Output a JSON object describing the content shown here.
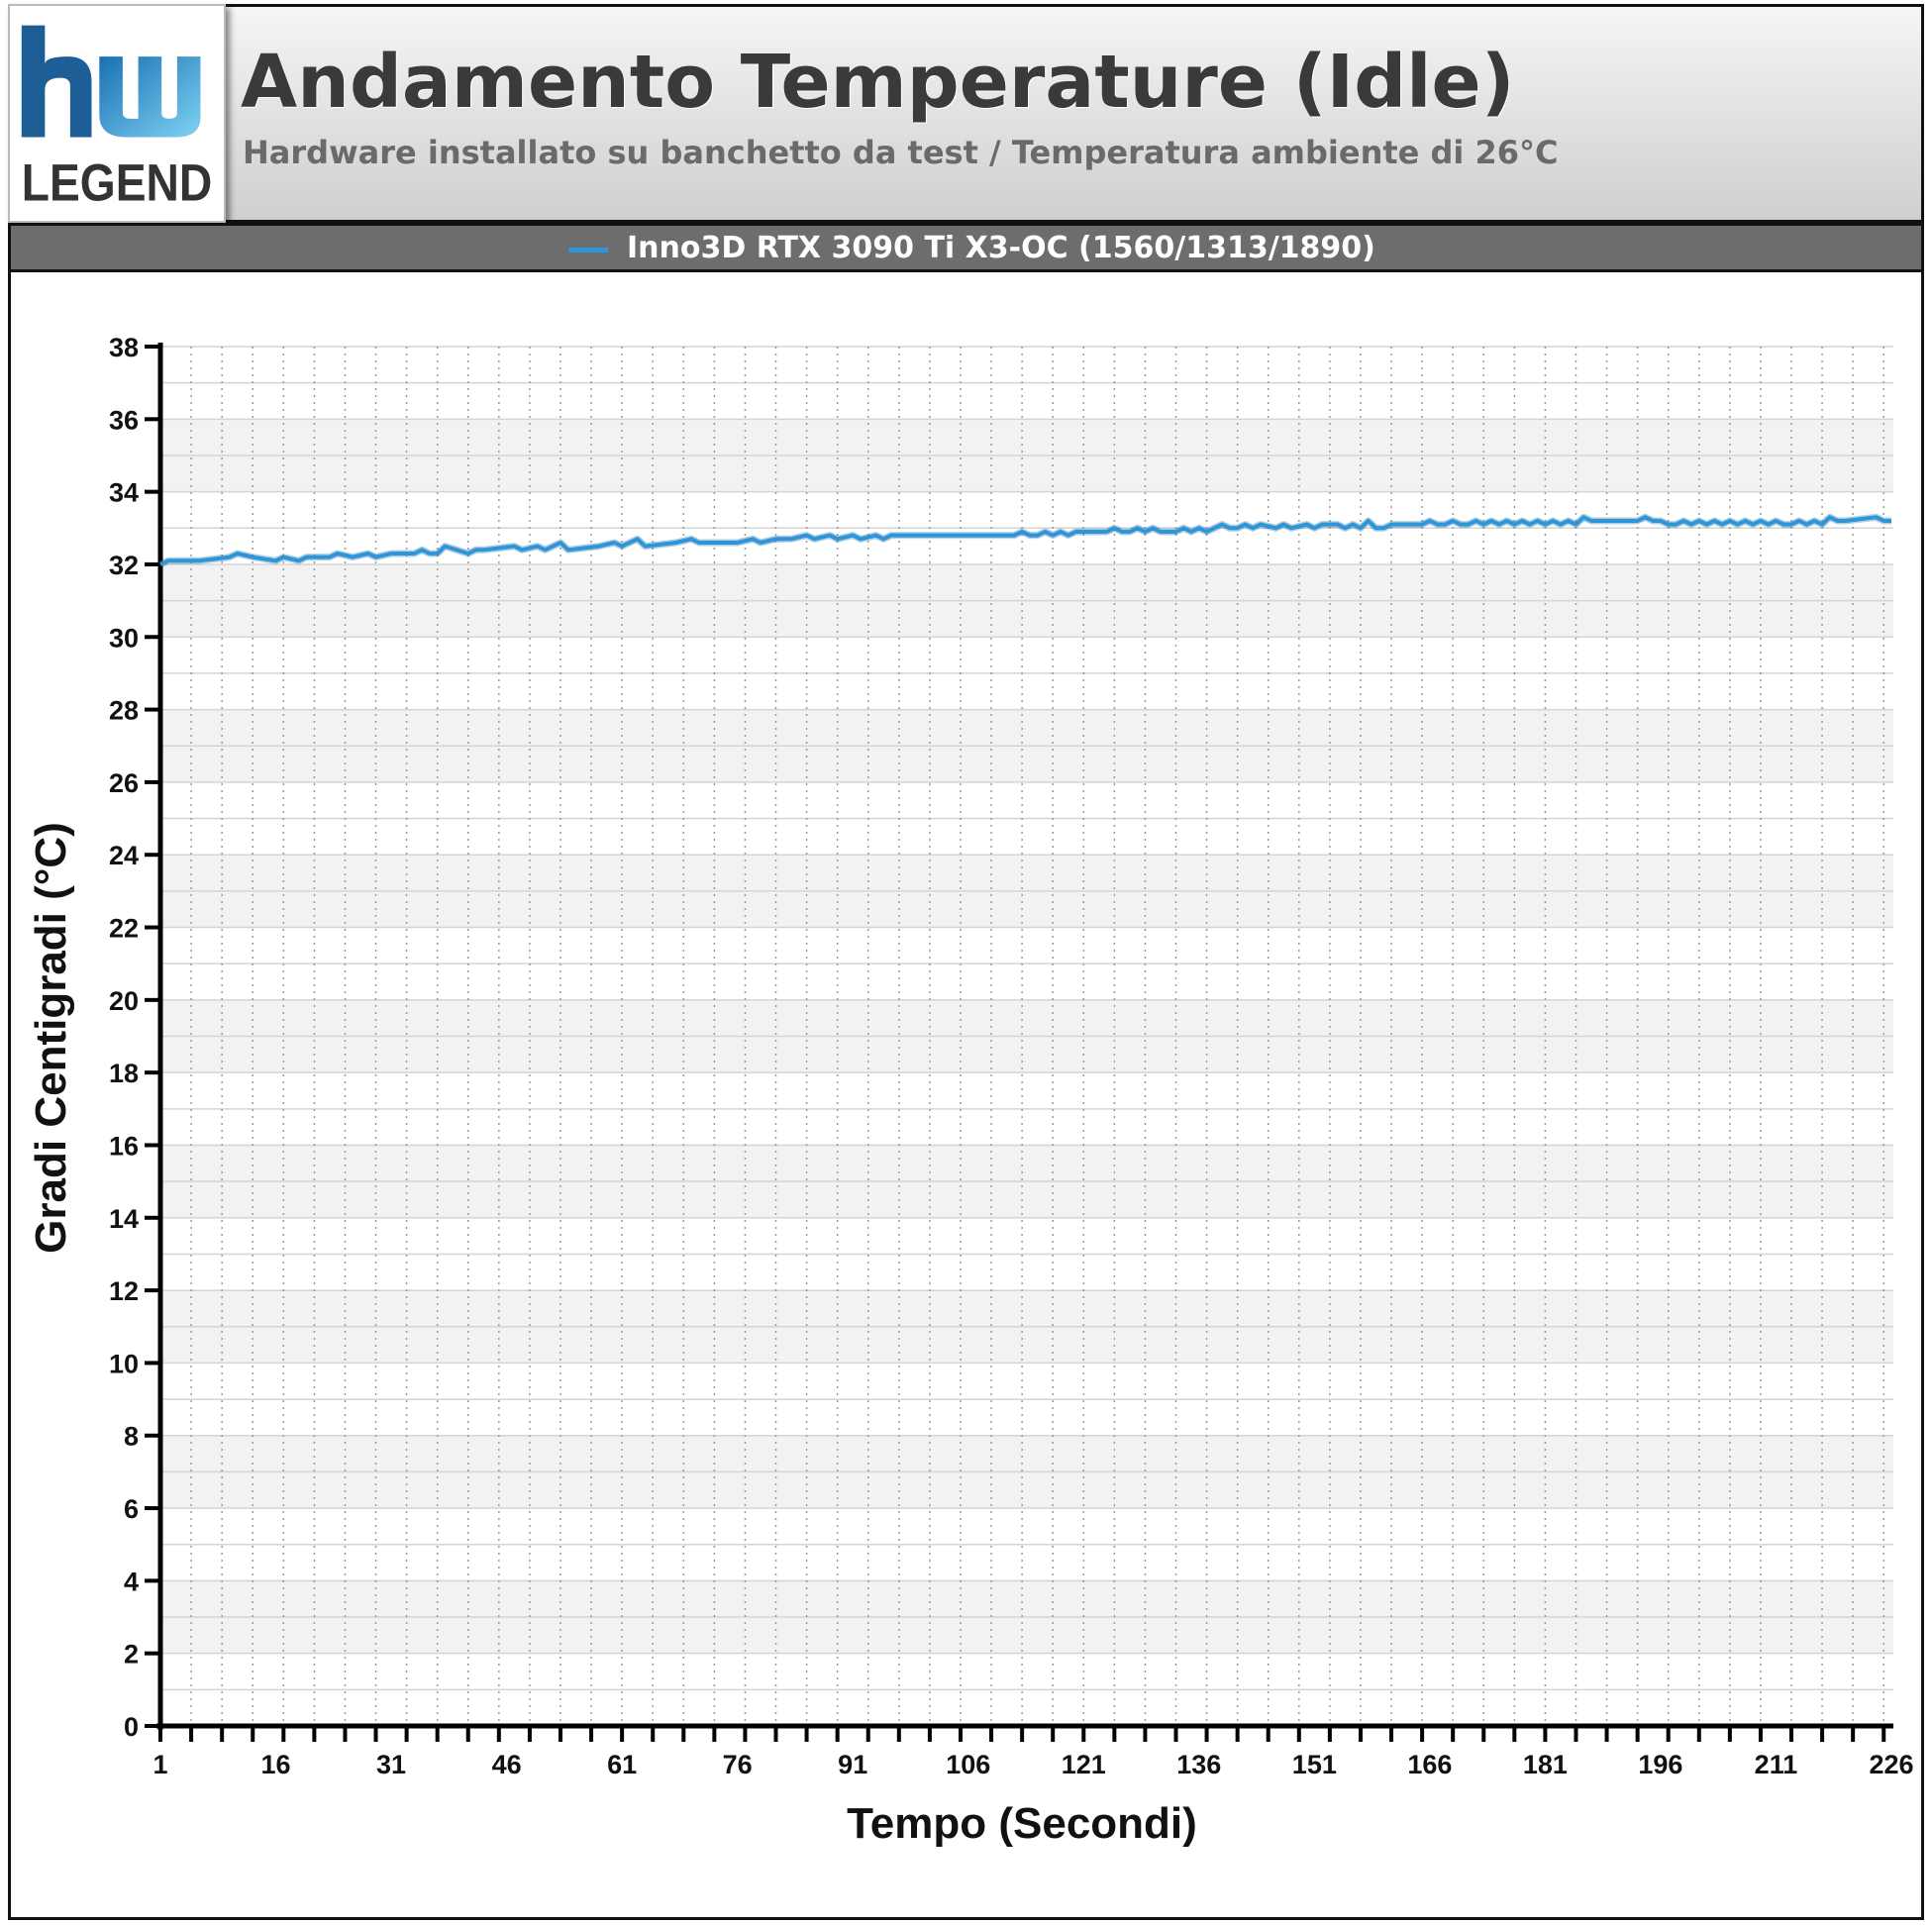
{
  "header": {
    "logo_text_top": "hw",
    "logo_text_bottom": "LEGEND",
    "title": "Andamento Temperature (Idle)",
    "subtitle": "Hardware installato su banchetto da test / Temperatura ambiente di 26°C"
  },
  "colors": {
    "series": "#2e95d8",
    "header_text": "#3a3a3a",
    "legend_bar": "#6d6d6d"
  },
  "chart_data": {
    "type": "line",
    "title": "Andamento Temperature (Idle)",
    "subtitle": "Hardware installato su banchetto da test / Temperatura ambiente di 26°C",
    "xlabel": "Tempo (Secondi)",
    "ylabel": "Gradi Centigradi (°C)",
    "xlim": [
      1,
      226
    ],
    "ylim": [
      0,
      38
    ],
    "x_tick_labels": [
      "1",
      "16",
      "31",
      "46",
      "61",
      "76",
      "91",
      "106",
      "121",
      "136",
      "151",
      "166",
      "181",
      "196",
      "211",
      "226"
    ],
    "y_tick_labels": [
      "0",
      "2",
      "4",
      "6",
      "8",
      "10",
      "12",
      "14",
      "16",
      "18",
      "20",
      "22",
      "24",
      "26",
      "28",
      "30",
      "32",
      "34",
      "36",
      "38"
    ],
    "grid": true,
    "legend_position": "top",
    "series": [
      {
        "name": "Inno3D RTX 3090 Ti X3-OC (1560/1313/1890)",
        "x": [
          1,
          2,
          6,
          10,
          11,
          13,
          16,
          17,
          19,
          20,
          23,
          24,
          26,
          28,
          29,
          31,
          34,
          35,
          36,
          37,
          38,
          41,
          42,
          43,
          47,
          48,
          50,
          51,
          53,
          54,
          58,
          60,
          61,
          63,
          64,
          68,
          70,
          71,
          73,
          76,
          78,
          79,
          81,
          83,
          85,
          86,
          88,
          89,
          91,
          92,
          94,
          95,
          96,
          100,
          112,
          113,
          114,
          115,
          116,
          117,
          118,
          119,
          120,
          124,
          125,
          126,
          127,
          128,
          129,
          130,
          131,
          133,
          134,
          135,
          136,
          137,
          138,
          139,
          140,
          141,
          142,
          143,
          144,
          146,
          147,
          148,
          150,
          151,
          152,
          154,
          155,
          156,
          157,
          158,
          159,
          160,
          161,
          165,
          166,
          167,
          168,
          169,
          170,
          171,
          172,
          173,
          174,
          175,
          176,
          177,
          178,
          179,
          180,
          181,
          182,
          183,
          184,
          185,
          186,
          187,
          188,
          189,
          193,
          194,
          195,
          196,
          197,
          198,
          199,
          200,
          201,
          202,
          203,
          204,
          205,
          206,
          207,
          208,
          209,
          210,
          211,
          212,
          213,
          214,
          215,
          216,
          217,
          218,
          219,
          220,
          224,
          225,
          226
        ],
        "values": [
          32.0,
          32.1,
          32.1,
          32.2,
          32.3,
          32.2,
          32.1,
          32.2,
          32.1,
          32.2,
          32.2,
          32.3,
          32.2,
          32.3,
          32.2,
          32.3,
          32.3,
          32.4,
          32.3,
          32.3,
          32.5,
          32.3,
          32.4,
          32.4,
          32.5,
          32.4,
          32.5,
          32.4,
          32.6,
          32.4,
          32.5,
          32.6,
          32.5,
          32.7,
          32.5,
          32.6,
          32.7,
          32.6,
          32.6,
          32.6,
          32.7,
          32.6,
          32.7,
          32.7,
          32.8,
          32.7,
          32.8,
          32.7,
          32.8,
          32.7,
          32.8,
          32.7,
          32.8,
          32.8,
          32.8,
          32.9,
          32.8,
          32.8,
          32.9,
          32.8,
          32.9,
          32.8,
          32.9,
          32.9,
          33.0,
          32.9,
          32.9,
          33.0,
          32.9,
          33.0,
          32.9,
          32.9,
          33.0,
          32.9,
          33.0,
          32.9,
          33.0,
          33.1,
          33.0,
          33.0,
          33.1,
          33.0,
          33.1,
          33.0,
          33.1,
          33.0,
          33.1,
          33.0,
          33.1,
          33.1,
          33.0,
          33.1,
          33.0,
          33.2,
          33.0,
          33.0,
          33.1,
          33.1,
          33.2,
          33.1,
          33.1,
          33.2,
          33.1,
          33.1,
          33.2,
          33.1,
          33.2,
          33.1,
          33.2,
          33.1,
          33.2,
          33.1,
          33.2,
          33.1,
          33.2,
          33.1,
          33.2,
          33.1,
          33.3,
          33.2,
          33.2,
          33.2,
          33.2,
          33.3,
          33.2,
          33.2,
          33.1,
          33.1,
          33.2,
          33.1,
          33.2,
          33.1,
          33.2,
          33.1,
          33.2,
          33.1,
          33.2,
          33.1,
          33.2,
          33.1,
          33.2,
          33.1,
          33.1,
          33.2,
          33.1,
          33.2,
          33.1,
          33.3,
          33.2,
          33.2,
          33.3,
          33.2,
          33.2
        ]
      }
    ]
  }
}
